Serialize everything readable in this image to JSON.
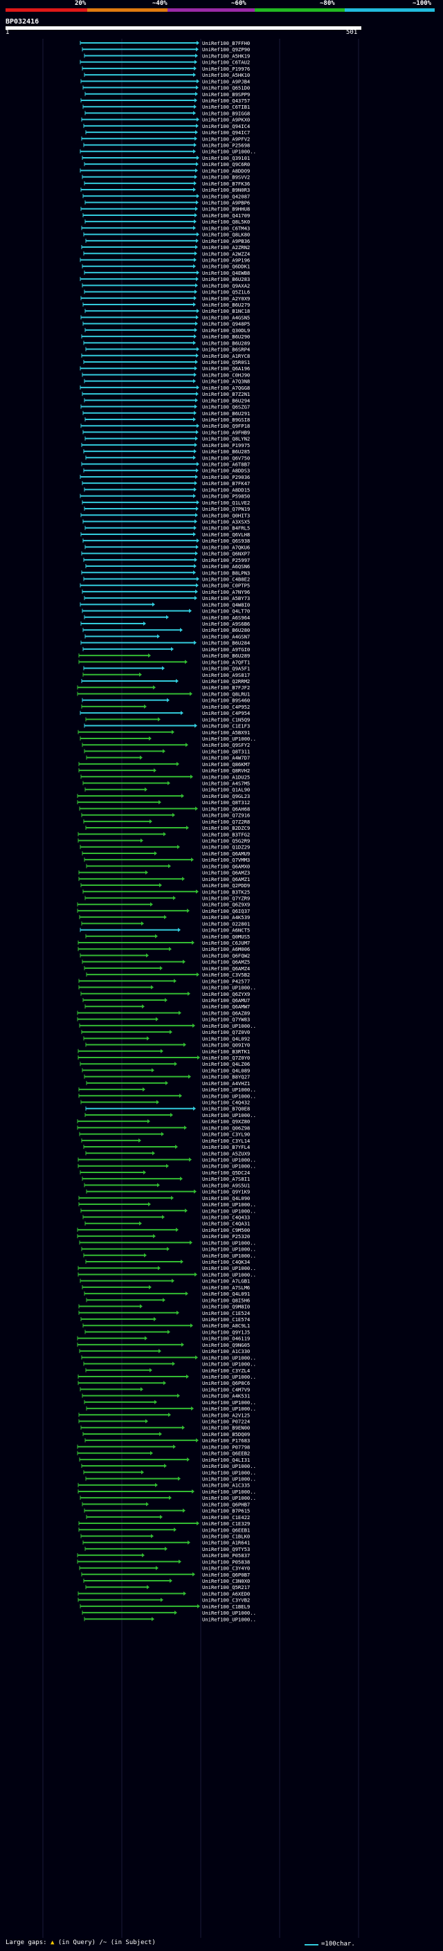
{
  "scale": {
    "labels": [
      "20%",
      "~40%",
      "~60%",
      "~80%",
      "~100%"
    ],
    "colors": [
      "#e01818",
      "#e07a10",
      "#9a2aa8",
      "#22b822",
      "#22bbdd"
    ]
  },
  "query": {
    "id": "BP032416",
    "start": "1",
    "end": "501"
  },
  "hits": [
    "UniRef100_B7FFH0",
    "UniRef100_Q9ZP90",
    "UniRef100_A5HK19",
    "UniRef100_C6TAU2",
    "UniRef100_P19976",
    "UniRef100_A5HK10",
    "UniRef100_A9PJB4",
    "UniRef100_Q651D0",
    "UniRef100_B9SPP9",
    "UniRef100_Q43757",
    "UniRef100_C6TIB1",
    "UniRef100_B9IGG8",
    "UniRef100_A9PKX0",
    "UniRef100_Q94IC4",
    "UniRef100_Q94IC7",
    "UniRef100_A9PFV2",
    "UniRef100_P25698",
    "UniRef100_UP1000..",
    "UniRef100_Q39101",
    "UniRef100_Q9C6R0",
    "UniRef100_A8DDO9",
    "UniRef100_B9SVV2",
    "UniRef100_B7FK36",
    "UniRef100_B9N0R3",
    "UniRef100_Q42087",
    "UniRef100_A9PBP6",
    "UniRef100_B9HHU8",
    "UniRef100_Q41709",
    "UniRef100_Q8L5K0",
    "UniRef100_C6TM43",
    "UniRef100_Q8LK80",
    "UniRef100_A9PB36",
    "UniRef100_A2ZRN2",
    "UniRef100_A2WZZ4",
    "UniRef100_A9P196",
    "UniRef100_Q6DDK1",
    "UniRef100_Q4EWB8",
    "UniRef100_B6U283",
    "UniRef100_Q9AXA2",
    "UniRef100_Q5Z1L6",
    "UniRef100_A2Y0X9",
    "UniRef100_B6U279",
    "UniRef100_B1NC18",
    "UniRef100_A4GSN5",
    "UniRef100_Q948P5",
    "UniRef100_Q30DL9",
    "UniRef100_B6U290",
    "UniRef100_B6U289",
    "UniRef100_B6SRP4",
    "UniRef100_A1RYC8",
    "UniRef100_Q5R0S1",
    "UniRef100_Q6A196",
    "UniRef100_C0HJ90",
    "UniRef100_A7Q3N8",
    "UniRef100_A7QGG8",
    "UniRef100_B7Z2N1",
    "UniRef100_B6U294",
    "UniRef100_Q6SZG7",
    "UniRef100_B6U291",
    "UniRef100_B9GSI8",
    "UniRef100_Q9FP18",
    "UniRef100_A9FHB9",
    "UniRef100_Q8LYN2",
    "UniRef100_P19975",
    "UniRef100_B6U285",
    "UniRef100_Q6V750",
    "UniRef100_A6T8B7",
    "UniRef100_A8DDS3",
    "UniRef100_P29036",
    "UniRef100_B7FK47",
    "UniRef100_A8DD15",
    "UniRef100_P59850",
    "UniRef100_Q1LVE2",
    "UniRef100_Q7PN19",
    "UniRef100_Q0HIT3",
    "UniRef100_A3XSX5",
    "UniRef100_B4FRL5",
    "UniRef100_Q6VLH8",
    "UniRef100_Q6S938",
    "UniRef100_A7QKU6",
    "UniRef100_Q6NXP7",
    "UniRef100_P25997",
    "UniRef100_A6QSN6",
    "UniRef100_B8LPN3",
    "UniRef100_C4B8E2",
    "UniRef100_C0PTP5",
    "UniRef100_A7NY96",
    "UniRef100_A5BY73",
    "UniRef100_Q4W8I0",
    "UniRef100_Q4LT70",
    "UniRef100_A6S964",
    "UniRef100_A9S6B6",
    "UniRef100_B6U280",
    "UniRef100_A4GSN7",
    "UniRef100_B6U284",
    "UniRef100_A9TGI0",
    "UniRef100_B6U289",
    "UniRef100_A7QFT1",
    "UniRef100_Q9A5F1",
    "UniRef100_A9S817",
    "UniRef100_Q2RRM2",
    "UniRef100_B7FJF2",
    "UniRef100_Q8LRU1",
    "UniRef100_B9S460",
    "UniRef100_C4P952",
    "UniRef100_C4P954",
    "UniRef100_C1N5Q9",
    "UniRef100_C1E1F3",
    "UniRef100_A5BX91",
    "UniRef100_UP1000..",
    "UniRef100_Q9SFY2",
    "UniRef100_Q8T311",
    "UniRef100_A4W7D7",
    "UniRef100_Q86KM7",
    "UniRef100_Q8RVH2",
    "UniRef100_A1DU25",
    "UniRef100_A4S7M5",
    "UniRef100_Q1AL90",
    "UniRef100_Q9GL23",
    "UniRef100_Q8T312",
    "UniRef100_Q6AH68",
    "UniRef100_Q7Z916",
    "UniRef100_Q7Z2R8",
    "UniRef100_B2DZC9",
    "UniRef100_B3TFG2",
    "UniRef100_Q5G2R9",
    "UniRef100_Q1DZ29",
    "UniRef100_Q6AMU9",
    "UniRef100_Q7VMM3",
    "UniRef100_Q6AMX0",
    "UniRef100_Q6AMZ3",
    "UniRef100_Q6AMZ1",
    "UniRef100_Q2PDD9",
    "UniRef100_B3TK25",
    "UniRef100_Q7YZR9",
    "UniRef100_Q6Z9X9",
    "UniRef100_Q6IQ37",
    "UniRef100_A4K539",
    "UniRef100_O22801",
    "UniRef100_A6NCT5",
    "UniRef100_Q0MUS5",
    "UniRef100_C6JUM7",
    "UniRef100_A6M006",
    "UniRef100_Q6FQW2",
    "UniRef100_Q6AMZ5",
    "UniRef100_Q6AMZ4",
    "UniRef100_C3V5B2",
    "UniRef100_P42577",
    "UniRef100_UP1000..",
    "UniRef100_Q6ZYX9",
    "UniRef100_Q6AMU7",
    "UniRef100_Q6AMW7",
    "UniRef100_Q6AZ89",
    "UniRef100_Q7YW83",
    "UniRef100_UP1000..",
    "UniRef100_Q7Z0V0",
    "UniRef100_Q4L092",
    "UniRef100_Q09IY0",
    "UniRef100_B3RTK1",
    "UniRef100_Q7Z0Y0",
    "UniRef100_Q4LZ06",
    "UniRef100_Q4L089",
    "UniRef100_B8YQ27",
    "UniRef100_A4VHZ1",
    "UniRef100_UP1000..",
    "UniRef100_UP1000..",
    "UniRef100_C4Q432",
    "UniRef100_B7Q0E8",
    "UniRef100_UP1000..",
    "UniRef100_Q9XZ80",
    "UniRef100_Q06Z98",
    "UniRef100_C3YL90",
    "UniRef100_C3YL14",
    "UniRef100_B7YFL4",
    "UniRef100_A5ZUX9",
    "UniRef100_UP1000..",
    "UniRef100_UP1000..",
    "UniRef100_Q5DC24",
    "UniRef100_A7S8I1",
    "UniRef100_A9S5U1",
    "UniRef100_Q9Y1K9",
    "UniRef100_Q4L090",
    "UniRef100_UP1000..",
    "UniRef100_UP1000..",
    "UniRef100_C4Q433",
    "UniRef100_C4QA31",
    "UniRef100_C9M500",
    "UniRef100_P25320",
    "UniRef100_UP1000..",
    "UniRef100_UP1000..",
    "UniRef100_UP1000..",
    "UniRef100_C4QK34",
    "UniRef100_UP1000..",
    "UniRef100_UP1000..",
    "UniRef100_A7LGB1",
    "UniRef100_A7SLM6",
    "UniRef100_Q4L091",
    "UniRef100_Q8I5H6",
    "UniRef100_Q9M8I0",
    "UniRef100_C1E524",
    "UniRef100_C1E574",
    "UniRef100_A8C9L1",
    "UniRef100_Q9Y1J5",
    "UniRef100_O46119",
    "UniRef100_Q9NG05",
    "UniRef100_A1C330",
    "UniRef100_UP1000..",
    "UniRef100_UP1000..",
    "UniRef100_C3YZL4",
    "UniRef100_UP1000..",
    "UniRef100_Q6P8C6",
    "UniRef100_C4M7V9",
    "UniRef100_A4K531",
    "UniRef100_UP1000..",
    "UniRef100_UP1000..",
    "UniRef100_A2V125",
    "UniRef100_P07224",
    "UniRef100_B9EN00",
    "UniRef100_B5DQ09",
    "UniRef100_P17683",
    "UniRef100_P07798",
    "UniRef100_Q6EEB2",
    "UniRef100_Q4LI31",
    "UniRef100_UP1000..",
    "UniRef100_UP1000..",
    "UniRef100_UP1000..",
    "UniRef100_A1C335",
    "UniRef100_UP1000..",
    "UniRef100_UP1000..",
    "UniRef100_Q6PHB7",
    "UniRef100_B7P615",
    "UniRef100_C1E422",
    "UniRef100_C1E329",
    "UniRef100_Q6EEB1",
    "UniRef100_C1BLK0",
    "UniRef100_A1R641",
    "UniRef100_Q9TY53",
    "UniRef100_P05837",
    "UniRef100_P05838",
    "UniRef100_C3Y4Y0",
    "UniRef100_Q6P0B7",
    "UniRef100_C3N0X0",
    "UniRef100_Q5R217",
    "UniRef100_A6XED0",
    "UniRef100_C3YVB2",
    "UniRef100_C1BEL9",
    "UniRef100_UP1000..",
    "UniRef100_UP1000.."
  ],
  "footer": {
    "large_gaps": "Large gaps:",
    "in_query": "(in Query)",
    "in_subject": "/~ (in Subject)",
    "legend": "=100char."
  }
}
